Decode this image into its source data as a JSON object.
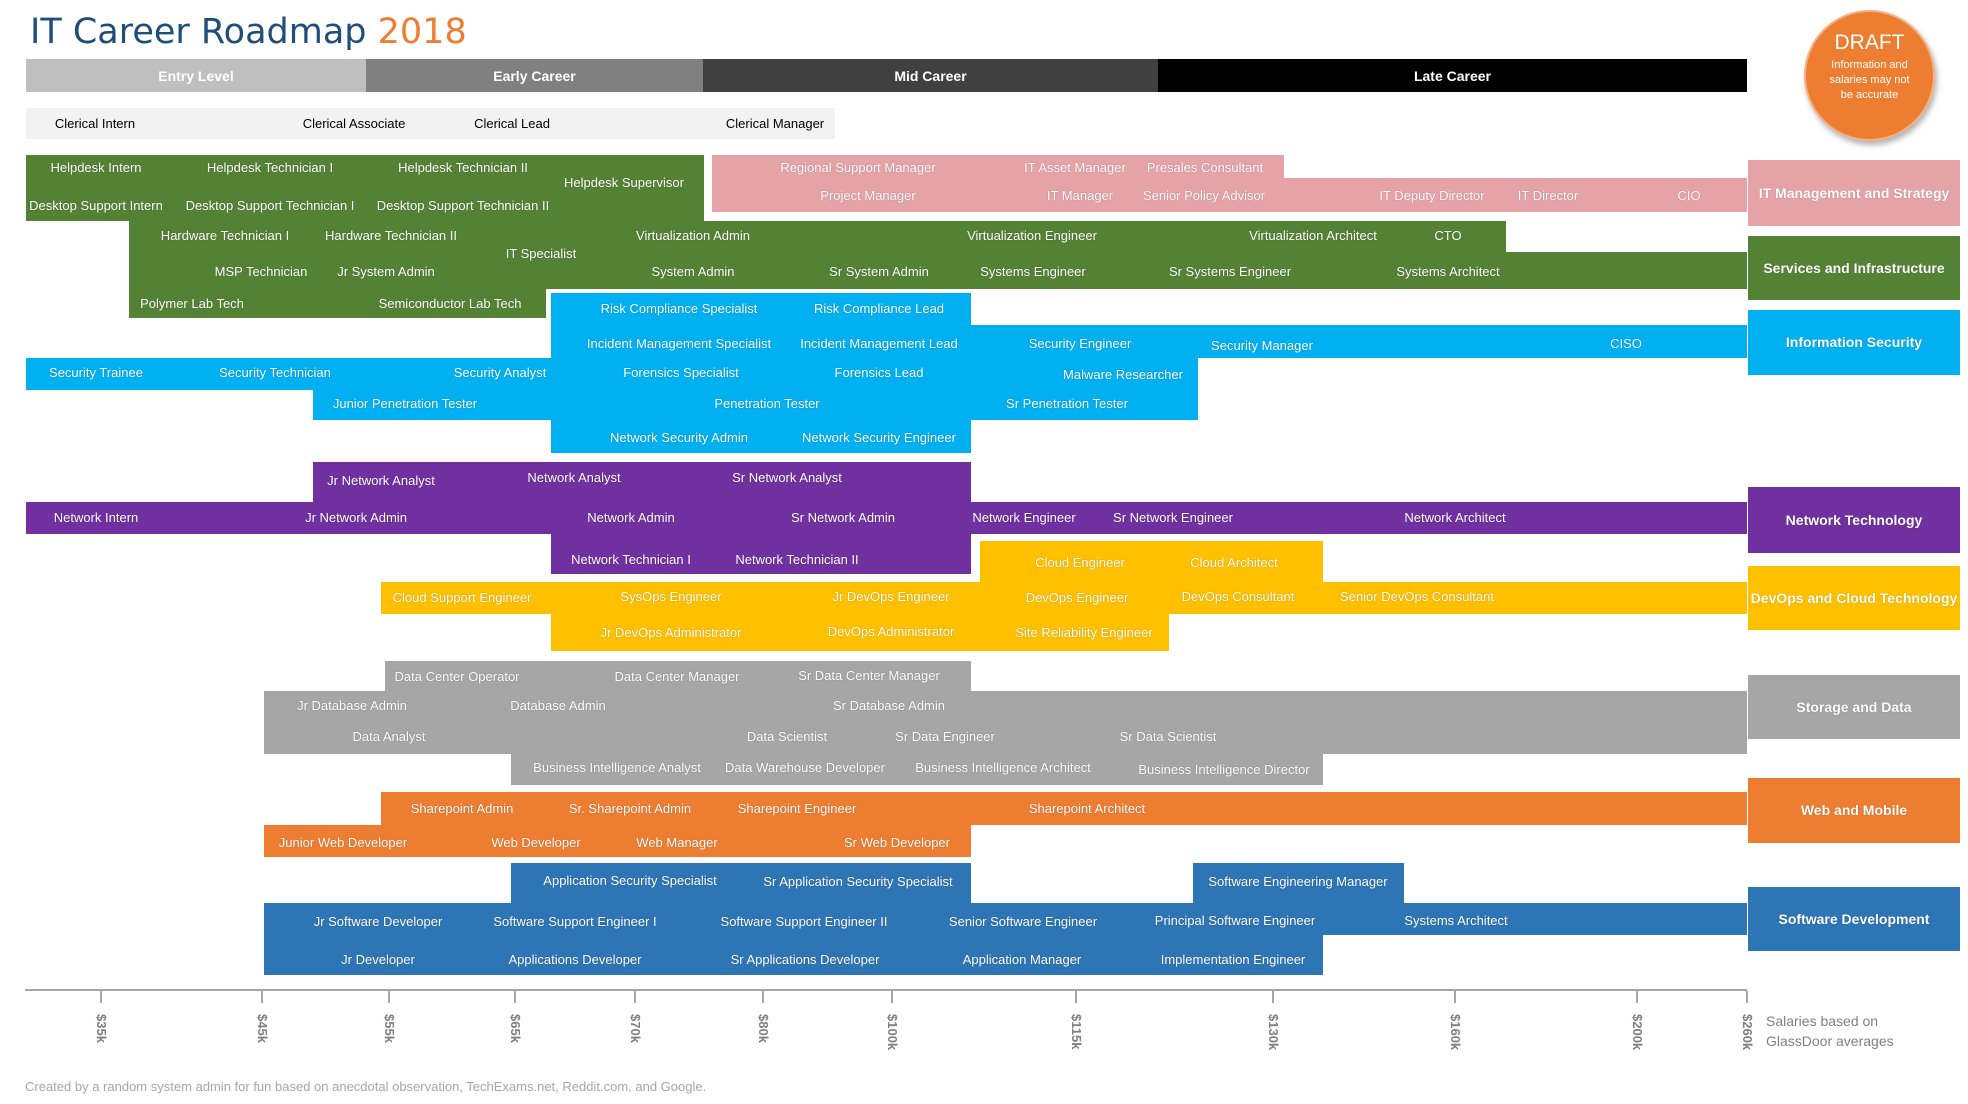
{
  "title": {
    "main": "IT Career Roadmap",
    "year": "2018"
  },
  "draft_badge": {
    "title": "DRAFT",
    "note": "Information and salaries may not be accurate"
  },
  "phases": [
    {
      "label": "Entry Level",
      "bg": "#bfbfbf",
      "fg": "#ffffff"
    },
    {
      "label": "Early Career",
      "bg": "#808080",
      "fg": "#ffffff"
    },
    {
      "label": "Mid Career",
      "bg": "#404040",
      "fg": "#ffffff"
    },
    {
      "label": "Late Career",
      "bg": "#000000",
      "fg": "#ffffff"
    }
  ],
  "categories": [
    {
      "label": "IT Management and Strategy",
      "color": "#e6a3a7"
    },
    {
      "label": "Services and Infrastructure",
      "color": "#548235"
    },
    {
      "label": "Information Security",
      "color": "#00b0f0"
    },
    {
      "label": "Network Technology",
      "color": "#7030a0"
    },
    {
      "label": "DevOps and Cloud Technology",
      "color": "#ffc000"
    },
    {
      "label": "Storage and Data",
      "color": "#a6a6a6"
    },
    {
      "label": "Web and Mobile",
      "color": "#ed7d31"
    },
    {
      "label": "Software Development",
      "color": "#2e75b6"
    }
  ],
  "clerical": {
    "color": "#f2f2f2",
    "roles": [
      "Clerical Intern",
      "Clerical Associate",
      "Clerical Lead",
      "Clerical Manager"
    ]
  },
  "roles": {
    "mgmt": [
      "Regional Support Manager",
      "IT Asset Manager",
      "Presales Consultant",
      "Project Manager",
      "IT Manager",
      "Senior Policy Advisor",
      "IT Deputy Director",
      "IT Director",
      "CIO"
    ],
    "infra": [
      "Helpdesk Intern",
      "Helpdesk Technician I",
      "Helpdesk Technician II",
      "Helpdesk Supervisor",
      "Desktop Support Intern",
      "Desktop Support Technician I",
      "Desktop Support Technician II",
      "Hardware Technician I",
      "Hardware Technician II",
      "IT Specialist",
      "Virtualization Admin",
      "Virtualization Engineer",
      "Virtualization Architect",
      "CTO",
      "MSP Technician",
      "Jr System Admin",
      "System Admin",
      "Sr System Admin",
      "Systems Engineer",
      "Sr Systems Engineer",
      "Systems Architect",
      "Polymer Lab Tech",
      "Semiconductor Lab Tech"
    ],
    "security": [
      "Risk Compliance Specialist",
      "Risk Compliance Lead",
      "Incident Management Specialist",
      "Incident Management Lead",
      "Security Engineer",
      "Security Manager",
      "CISO",
      "Security Trainee",
      "Security Technician",
      "Security Analyst",
      "Forensics Specialist",
      "Forensics Lead",
      "Malware Researcher",
      "Junior Penetration Tester",
      "Penetration Tester",
      "Sr Penetration Tester",
      "Network Security Admin",
      "Network Security Engineer"
    ],
    "network": [
      "Jr Network Analyst",
      "Network Analyst",
      "Sr Network Analyst",
      "Network Intern",
      "Jr Network Admin",
      "Network Admin",
      "Sr Network Admin",
      "Network Engineer",
      "Sr Network Engineer",
      "Network Architect",
      "Network Technician I",
      "Network Technician II"
    ],
    "devops": [
      "Cloud Engineer",
      "Cloud Architect",
      "Cloud Support Engineer",
      "SysOps Engineer",
      "Jr DevOps Engineer",
      "DevOps Engineer",
      "DevOps Consultant",
      "Senior DevOps Consultant",
      "Jr DevOps Administrator",
      "DevOps Administrator",
      "Site Reliability Engineer"
    ],
    "data": [
      "Data Center Operator",
      "Data Center Manager",
      "Sr Data Center Manager",
      "Jr Database Admin",
      "Database Admin",
      "Sr Database Admin",
      "Data  Analyst",
      "Data Scientist",
      "Sr Data Engineer",
      "Sr Data Scientist",
      "Business Intelligence Analyst",
      "Data Warehouse Developer",
      "Business Intelligence Architect",
      "Business Intelligence Director"
    ],
    "web": [
      "Sharepoint Admin",
      "Sr. Sharepoint Admin",
      "Sharepoint Engineer",
      "Sharepoint Architect",
      "Junior Web Developer",
      "Web Developer",
      "Web Manager",
      "Sr Web Developer"
    ],
    "software": [
      "Application Security Specialist",
      "Sr Application Security Specialist",
      "Software Engineering Manager",
      "Jr Software Developer",
      "Software Support Engineer I",
      "Software Support Engineer II",
      "Senior Software Engineer",
      "Principal Software Engineer",
      "Systems Architect",
      "Jr Developer",
      "Applications Developer",
      "Sr Applications Developer",
      "Application Manager",
      "Implementation Engineer"
    ]
  },
  "salary_axis": {
    "ticks": [
      "$35k",
      "$45k",
      "$55k",
      "$65k",
      "$70k",
      "$80k",
      "$100k",
      "$115k",
      "$130k",
      "$160k",
      "$200k",
      "$260k"
    ],
    "note": "Salaries based on GlassDoor averages"
  },
  "credit": "Created by a random system admin for fun based on anecdotal observation, TechExams.net, Reddit.com, and Google."
}
